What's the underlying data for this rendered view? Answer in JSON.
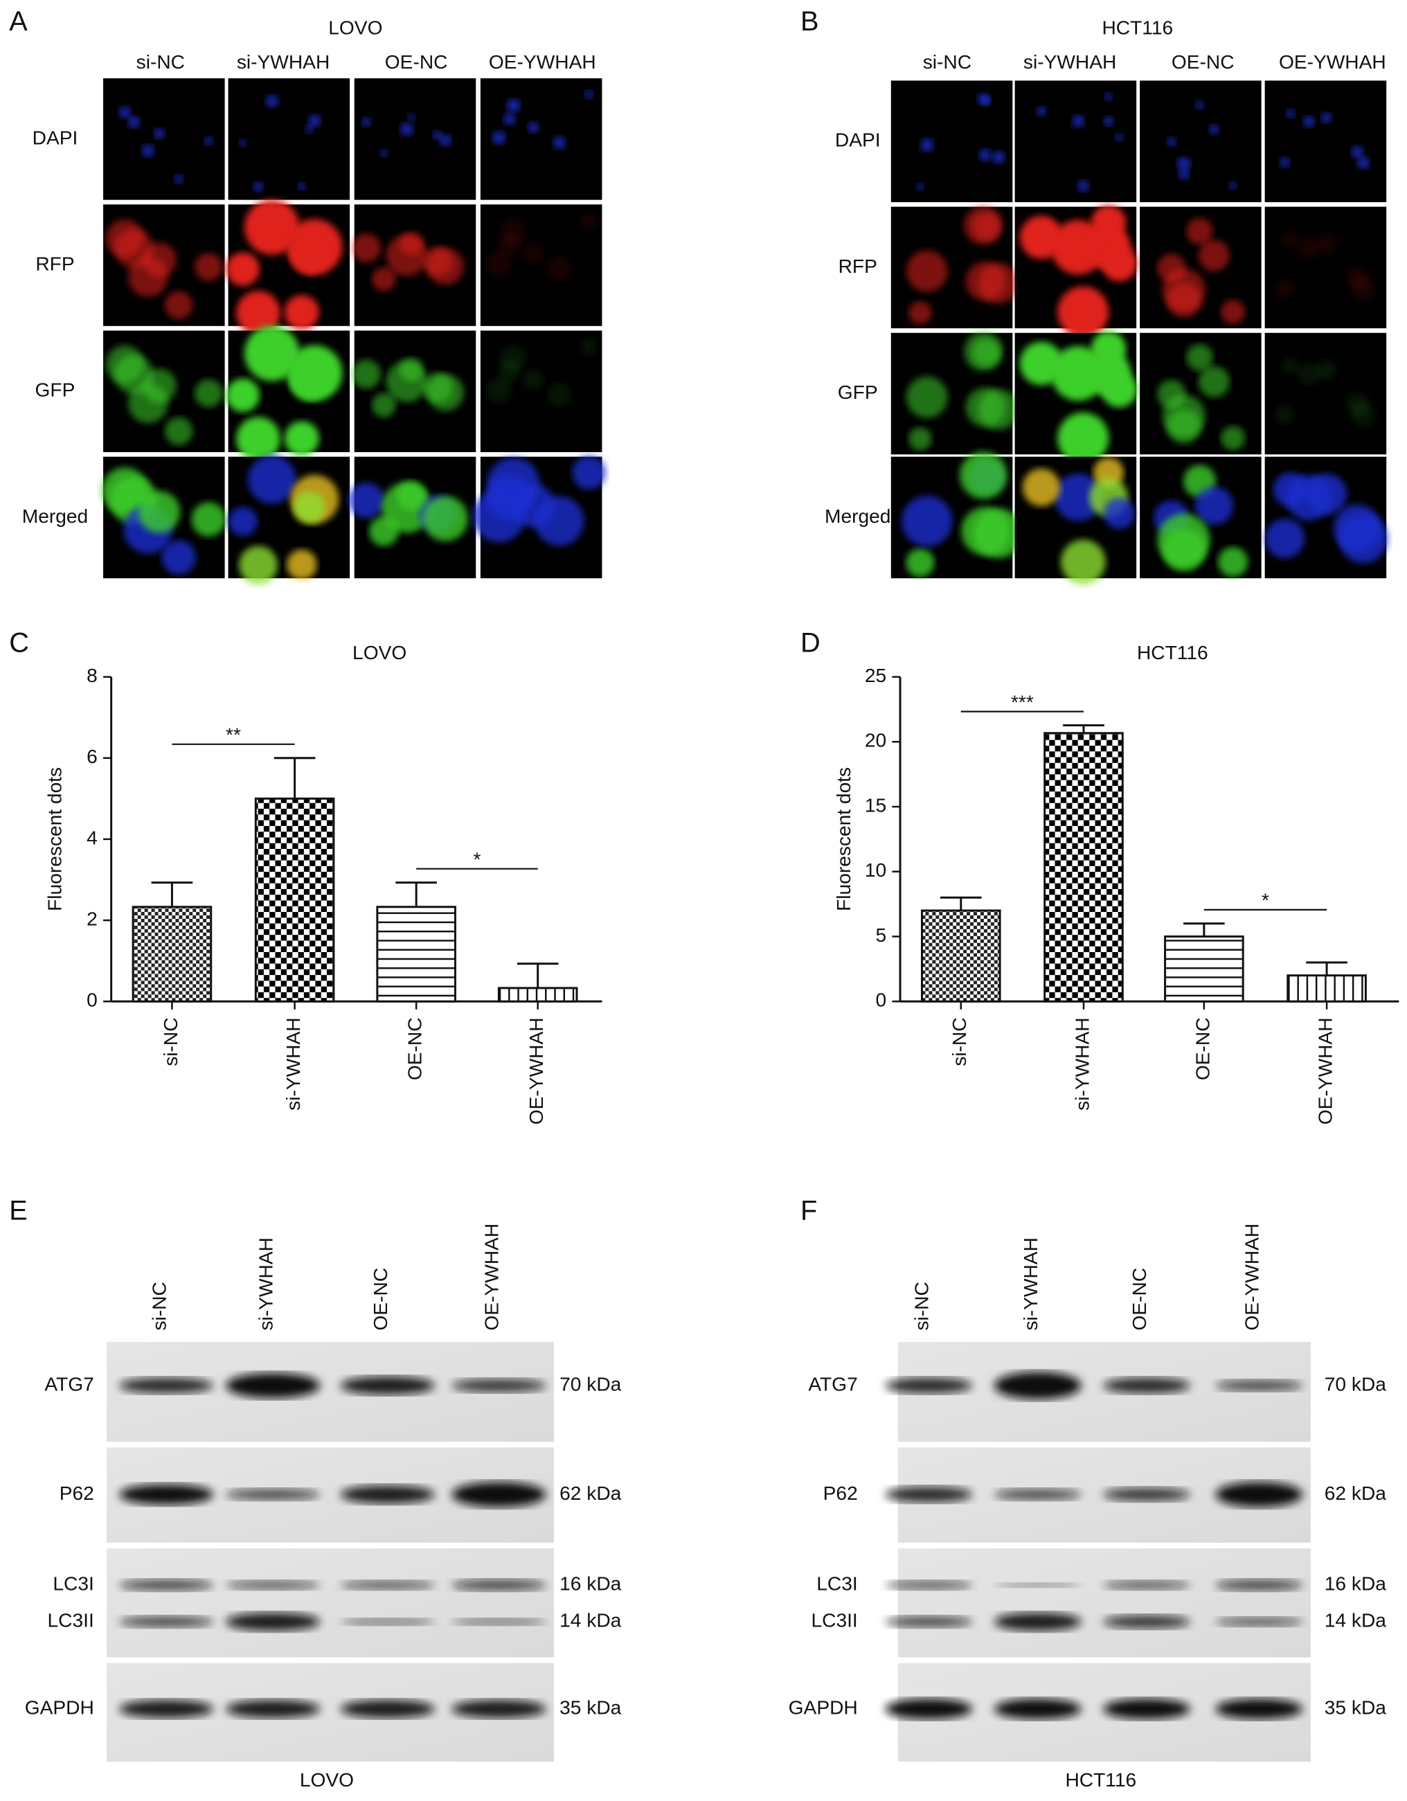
{
  "panel_a": {
    "letter": "A",
    "title": "LOVO",
    "columns": [
      "si-NC",
      "si-YWHAH",
      "OE-NC",
      "OE-YWHAH"
    ],
    "rows": [
      "DAPI",
      "RFP",
      "GFP",
      "Merged"
    ]
  },
  "panel_b": {
    "letter": "B",
    "title": "HCT116",
    "columns": [
      "si-NC",
      "si-YWHAH",
      "OE-NC",
      "OE-YWHAH"
    ],
    "rows": [
      "DAPI",
      "RFP",
      "GFP",
      "Merged"
    ]
  },
  "chart_data": [
    {
      "type": "bar",
      "letter": "C",
      "title": "LOVO",
      "y_label": "Fluorescent dots",
      "categories": [
        "si-NC",
        "si-YWHAH",
        "OE-NC",
        "OE-YWHAH"
      ],
      "values": [
        2.33,
        5,
        2.33,
        0.33
      ],
      "errors": [
        0.6,
        1,
        0.6,
        0.6
      ],
      "patterns": [
        "checker",
        "checker-bold",
        "hlines",
        "vlines"
      ],
      "ylim": [
        0,
        8
      ],
      "yticks": [
        0,
        2,
        4,
        6,
        8
      ],
      "significance": [
        {
          "from": 0,
          "to": 1,
          "label": "**"
        },
        {
          "from": 2,
          "to": 3,
          "label": "*"
        }
      ]
    },
    {
      "type": "bar",
      "letter": "D",
      "title": "HCT116",
      "y_label": "Fluorescent dots",
      "categories": [
        "si-NC",
        "si-YWHAH",
        "OE-NC",
        "OE-YWHAH"
      ],
      "values": [
        7,
        20.67,
        5,
        2
      ],
      "errors": [
        1,
        0.6,
        1,
        1
      ],
      "patterns": [
        "checker",
        "checker-bold",
        "hlines",
        "vlines"
      ],
      "ylim": [
        0,
        25
      ],
      "yticks": [
        0,
        5,
        10,
        15,
        20,
        25
      ],
      "significance": [
        {
          "from": 0,
          "to": 1,
          "label": "***"
        },
        {
          "from": 2,
          "to": 3,
          "label": "*"
        }
      ]
    }
  ],
  "panel_e": {
    "letter": "E",
    "cell_line": "LOVO",
    "lanes": [
      "si-NC",
      "si-YWHAH",
      "OE-NC",
      "OE-YWHAH"
    ],
    "proteins": [
      "ATG7",
      "P62",
      "LC3I",
      "LC3II",
      "GAPDH"
    ],
    "sizes": [
      "70 kDa",
      "62 kDa",
      "16 kDa",
      "14 kDa",
      "35 kDa"
    ]
  },
  "panel_f": {
    "letter": "F",
    "cell_line": "HCT116",
    "lanes": [
      "si-NC",
      "si-YWHAH",
      "OE-NC",
      "OE-YWHAH"
    ],
    "proteins": [
      "ATG7",
      "P62",
      "LC3I",
      "LC3II",
      "GAPDH"
    ],
    "sizes": [
      "70 kDa",
      "62 kDa",
      "16 kDa",
      "14 kDa",
      "35 kDa"
    ]
  }
}
